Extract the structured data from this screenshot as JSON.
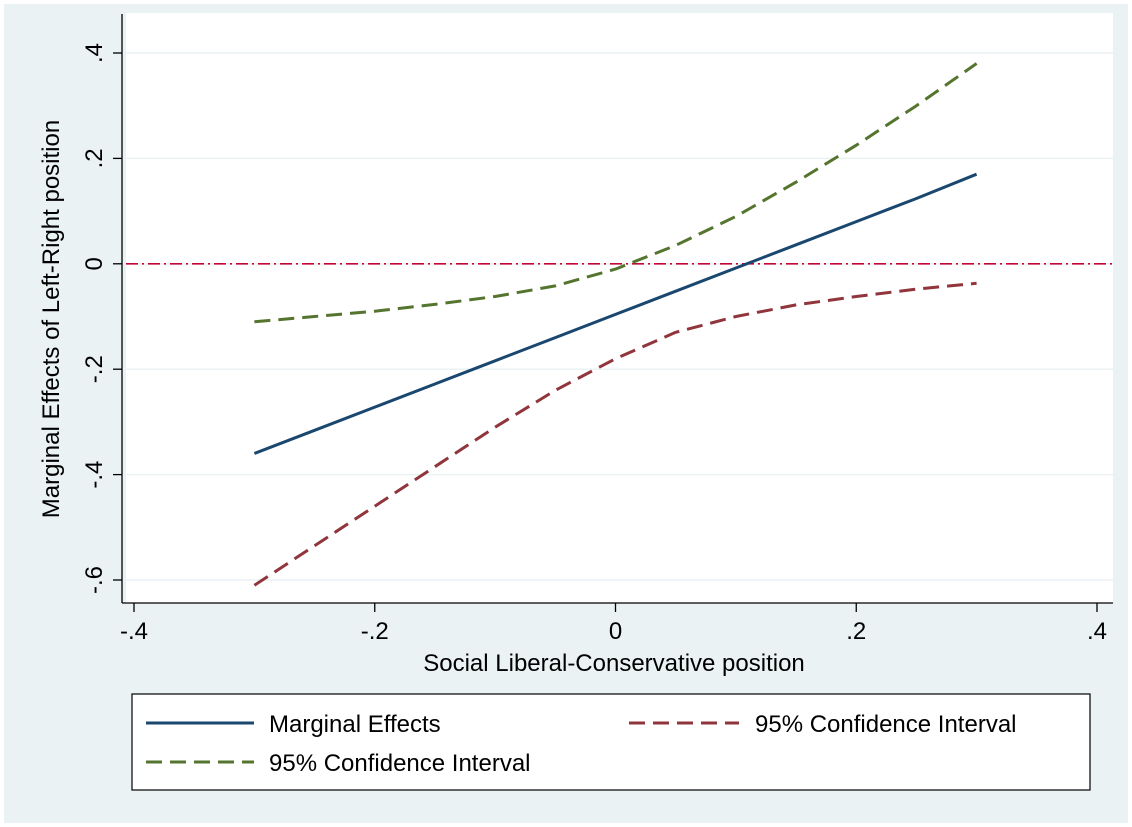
{
  "colors": {
    "background": "#eaf2f3",
    "plot_area": "#ffffff",
    "grid": "#eaf2f3",
    "marginal": "#1a476f",
    "ci_lower": "#90353b",
    "ci_upper": "#55752f",
    "zero_line": "#c10534"
  },
  "chart_data": {
    "type": "line",
    "title": "",
    "xlabel": "Social Liberal-Conservative position",
    "ylabel": "Marginal Effects of Left-Right position",
    "xlim": [
      -0.4,
      0.4
    ],
    "ylim": [
      -0.6,
      0.4
    ],
    "x_ticks": [
      {
        "value": -0.4,
        "label": "-.4"
      },
      {
        "value": -0.2,
        "label": "-.2"
      },
      {
        "value": 0,
        "label": "0"
      },
      {
        "value": 0.2,
        "label": ".2"
      },
      {
        "value": 0.4,
        "label": ".4"
      }
    ],
    "y_ticks": [
      {
        "value": -0.6,
        "label": "-.6"
      },
      {
        "value": -0.4,
        "label": "-.4"
      },
      {
        "value": -0.2,
        "label": "-.2"
      },
      {
        "value": 0,
        "label": "0"
      },
      {
        "value": 0.2,
        "label": ".2"
      },
      {
        "value": 0.4,
        "label": ".4"
      }
    ],
    "grid": true,
    "reference_line": {
      "y": 0,
      "style": "dash-dot"
    },
    "legend_position": "bottom",
    "x": [
      -0.3,
      -0.25,
      -0.2,
      -0.15,
      -0.1,
      -0.05,
      0,
      0.05,
      0.1,
      0.15,
      0.2,
      0.25,
      0.3
    ],
    "series": [
      {
        "name": "Marginal Effects",
        "style": "solid",
        "color": "#1a476f",
        "values": [
          -0.36,
          -0.316,
          -0.272,
          -0.228,
          -0.184,
          -0.14,
          -0.096,
          -0.052,
          -0.008,
          0.036,
          0.08,
          0.124,
          0.17
        ]
      },
      {
        "name": "95% Confidence Interval",
        "style": "dashed",
        "color": "#90353b",
        "values": [
          -0.61,
          -0.535,
          -0.46,
          -0.385,
          -0.31,
          -0.24,
          -0.18,
          -0.13,
          -0.1,
          -0.078,
          -0.062,
          -0.048,
          -0.037
        ]
      },
      {
        "name": "95% Confidence Interval",
        "style": "dashed",
        "color": "#55752f",
        "values": [
          -0.11,
          -0.1,
          -0.09,
          -0.077,
          -0.062,
          -0.042,
          -0.01,
          0.035,
          0.09,
          0.155,
          0.225,
          0.3,
          0.38
        ]
      }
    ]
  }
}
